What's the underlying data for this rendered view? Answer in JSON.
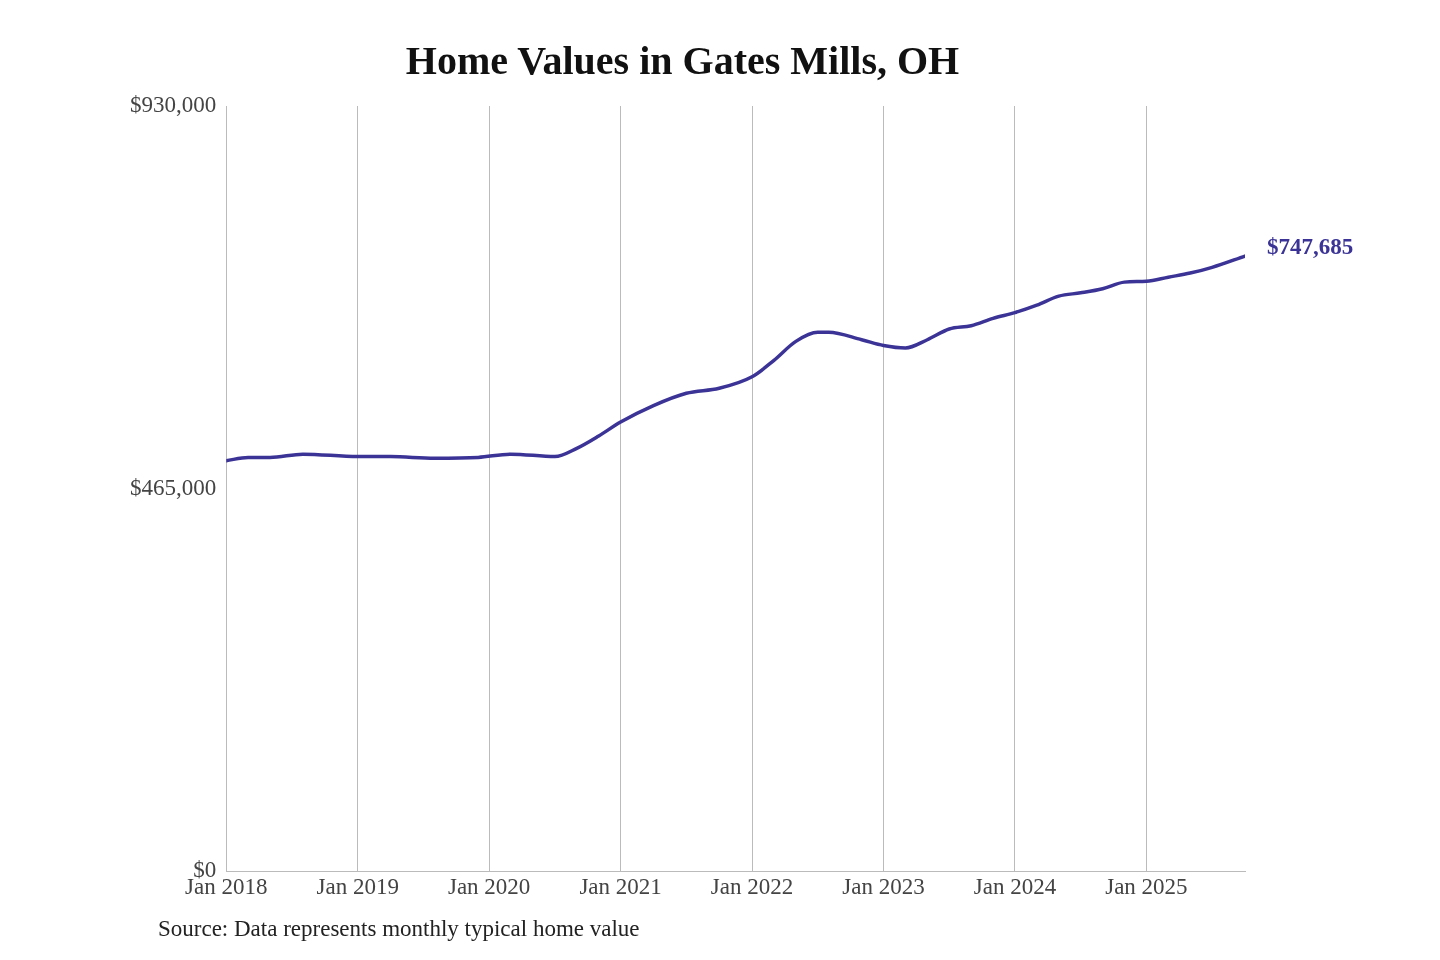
{
  "chart_data": {
    "type": "line",
    "title": "Home Values in Gates Mills, OH",
    "x": [
      "2018-01",
      "2018-03",
      "2018-05",
      "2018-08",
      "2019-01",
      "2019-04",
      "2019-08",
      "2019-12",
      "2020-03",
      "2020-07",
      "2020-09",
      "2020-11",
      "2021-01",
      "2021-04",
      "2021-07",
      "2021-10",
      "2022-01",
      "2022-03",
      "2022-05",
      "2022-07",
      "2022-08",
      "2022-11",
      "2023-01",
      "2023-03",
      "2023-05",
      "2023-07",
      "2023-09",
      "2023-11",
      "2024-01",
      "2024-03",
      "2024-05",
      "2024-07",
      "2024-09",
      "2024-11",
      "2025-01",
      "2025-03",
      "2025-05",
      "2025-07",
      "2025-10"
    ],
    "series": [
      {
        "color": "#3b3496",
        "values": [
          499000,
          503000,
          503000,
          507000,
          504000,
          504000,
          502000,
          503000,
          507000,
          504000,
          514000,
          529000,
          546000,
          566000,
          581000,
          587000,
          601000,
          621000,
          644000,
          655000,
          655000,
          646000,
          639000,
          636000,
          646000,
          659000,
          663000,
          672000,
          679000,
          688000,
          699000,
          703000,
          708000,
          716000,
          717000,
          722000,
          727000,
          734000,
          747685
        ]
      }
    ],
    "xticks": [
      {
        "value": "2018-01",
        "label": "Jan 2018"
      },
      {
        "value": "2019-01",
        "label": "Jan 2019"
      },
      {
        "value": "2020-01",
        "label": "Jan 2020"
      },
      {
        "value": "2021-01",
        "label": "Jan 2021"
      },
      {
        "value": "2022-01",
        "label": "Jan 2022"
      },
      {
        "value": "2023-01",
        "label": "Jan 2023"
      },
      {
        "value": "2024-01",
        "label": "Jan 2024"
      },
      {
        "value": "2025-01",
        "label": "Jan 2025"
      }
    ],
    "xlim": [
      "2018-01",
      "2025-10"
    ],
    "ylim": [
      0,
      930000
    ],
    "yticks": [
      {
        "value": 0,
        "label": "$0"
      },
      {
        "value": 465000,
        "label": "$465,000"
      },
      {
        "value": 930000,
        "label": "$930,000"
      }
    ],
    "grid": "x",
    "legend": false,
    "marker": "none",
    "line_style": "solid",
    "annotations": [
      {
        "text": "$747,685",
        "x": "2025-10",
        "y": 747685
      },
      "Source: Data represents monthly typical home value"
    ]
  }
}
